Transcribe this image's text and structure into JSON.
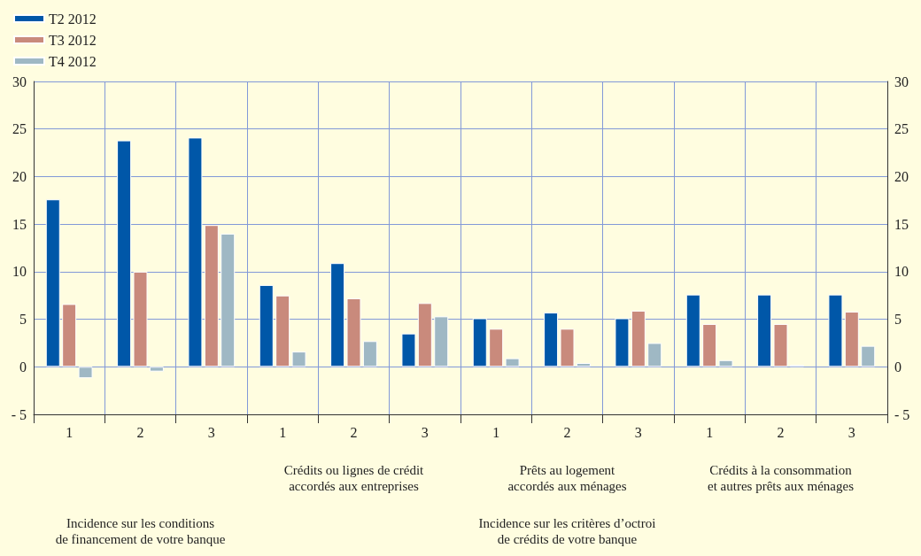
{
  "chart_data": {
    "type": "bar",
    "categories": [
      "1",
      "2",
      "3",
      "1",
      "2",
      "3",
      "1",
      "2",
      "3",
      "1",
      "2",
      "3"
    ],
    "series": [
      {
        "name": "T2 2012",
        "color": "#0057a8",
        "values": [
          17.6,
          23.8,
          24.1,
          8.6,
          10.9,
          3.5,
          5.1,
          5.7,
          5.1,
          7.6,
          7.6,
          7.6
        ]
      },
      {
        "name": "T3 2012",
        "color": "#c98a7c",
        "values": [
          6.6,
          10.0,
          14.9,
          7.5,
          7.2,
          6.7,
          4.0,
          4.0,
          5.9,
          4.5,
          4.5,
          5.8
        ]
      },
      {
        "name": "T4 2012",
        "color": "#9fb8c4",
        "values": [
          -1.2,
          -0.5,
          14.0,
          1.6,
          2.7,
          5.3,
          0.9,
          0.4,
          2.5,
          0.7,
          0.2,
          2.2
        ]
      }
    ],
    "ylim": [
      -5,
      30
    ],
    "yticks": [
      {
        "value": -5,
        "label": "- 5"
      },
      0,
      5,
      10,
      15,
      20,
      25,
      30
    ],
    "y2lim": [
      -5,
      30
    ],
    "y2ticks": [
      {
        "value": -5,
        "label": "- 5"
      },
      0,
      5,
      10,
      15,
      20,
      25,
      30
    ],
    "grid": true,
    "legend": "top left",
    "annotations": [
      "Crédits ou lignes de crédit\naccordés aux entreprises",
      "Prêts au logement\naccordés aux ménages",
      "Crédits à la consommation\net autres prêts aux ménages",
      "Incidence sur les conditions\nde financement de votre banque",
      "Incidence sur les critères d’octroi\nde crédits de votre banque"
    ]
  }
}
